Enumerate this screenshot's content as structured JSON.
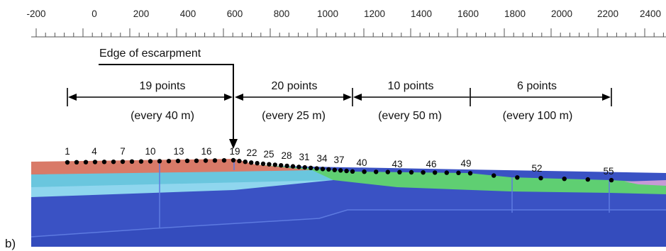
{
  "ruler": {
    "labels": [
      "-200",
      "0",
      "200",
      "400",
      "600",
      "800",
      "1000",
      "1200",
      "1400",
      "1600",
      "1800",
      "2000",
      "2200",
      "2400"
    ]
  },
  "escarpment_label": "Edge of escarpment",
  "segments": [
    {
      "count": "19 points",
      "spacing": "(every 40 m)"
    },
    {
      "count": "20 points",
      "spacing": "(every 25 m)"
    },
    {
      "count": "10 points",
      "spacing": "(every 50 m)"
    },
    {
      "count": "6 points",
      "spacing": "(every 100 m)"
    }
  ],
  "point_labels": [
    "1",
    "4",
    "7",
    "10",
    "13",
    "16",
    "19",
    "22",
    "25",
    "28",
    "31",
    "34",
    "37",
    "40",
    "43",
    "46",
    "49",
    "52",
    "55"
  ],
  "panel_label": "b)",
  "colors": {
    "crust_dark": "#3a52c4",
    "crust_band": "#2f47b8",
    "layer_light_blue": "#8fd6ee",
    "layer_cyan": "#6ac6de",
    "layer_red": "#d97a68",
    "layer_green": "#5fcf72",
    "layer_purple": "#c79ad6",
    "points": "#000000"
  }
}
